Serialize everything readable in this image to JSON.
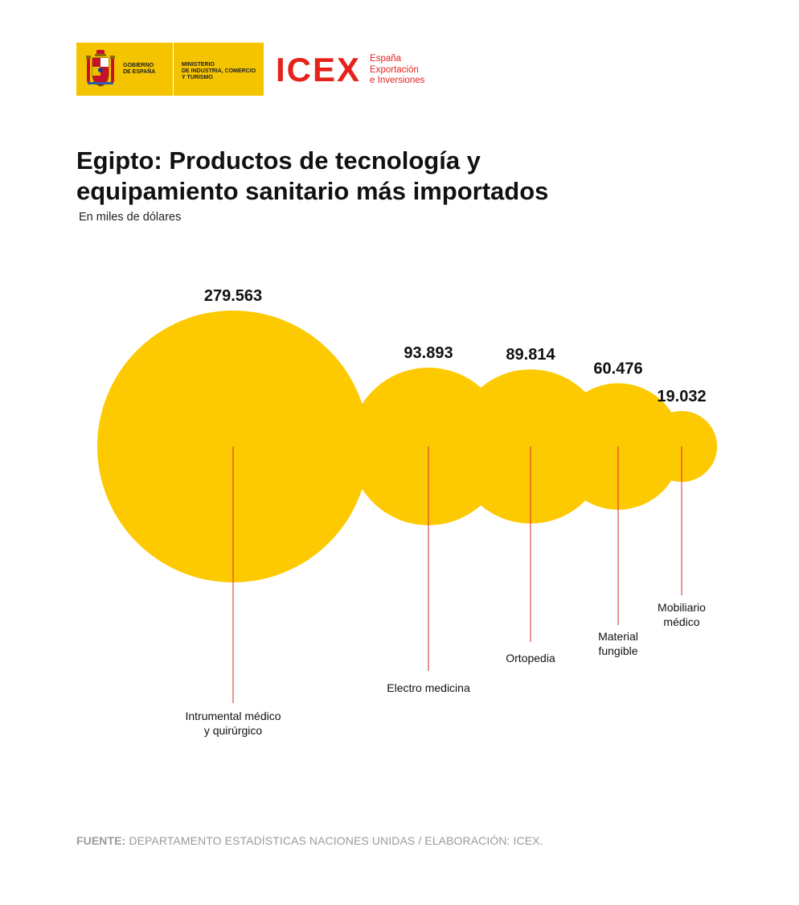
{
  "header": {
    "gov_line1": "GOBIERNO",
    "gov_line2": "DE ESPAÑA",
    "ministry_line1": "MINISTERIO",
    "ministry_line2": "DE INDUSTRIA, COMERCIO",
    "ministry_line3": "Y TURISMO",
    "icex_wordmark": "ICEX",
    "icex_sub1": "España",
    "icex_sub2": "Exportación",
    "icex_sub3": "e Inversiones"
  },
  "colors": {
    "bubble": "#fdc900",
    "leader_line": "#d9272e",
    "icex_red": "#e5231b",
    "gov_yellow": "#f5c400"
  },
  "chart_data": {
    "type": "bubble",
    "title_line1": "Egipto: Productos de tecnología y",
    "title_line2": "equipamiento sanitario más importados",
    "subtitle": "En miles de dólares",
    "items": [
      {
        "label_lines": [
          "Intrumental médico",
          "y quirúrgico"
        ],
        "value": 279563,
        "value_label": "279.563"
      },
      {
        "label_lines": [
          "Electro medicina"
        ],
        "value": 93893,
        "value_label": "93.893"
      },
      {
        "label_lines": [
          "Ortopedia"
        ],
        "value": 89814,
        "value_label": "89.814"
      },
      {
        "label_lines": [
          "Material",
          "fungible"
        ],
        "value": 60476,
        "value_label": "60.476"
      },
      {
        "label_lines": [
          "Mobiliario",
          "médico"
        ],
        "value": 19032,
        "value_label": "19.032"
      }
    ]
  },
  "source": {
    "prefix": "FUENTE:",
    "text": " DEPARTAMENTO ESTADÍSTICAS NACIONES UNIDAS / ELABORACIÓN: ICEX."
  }
}
